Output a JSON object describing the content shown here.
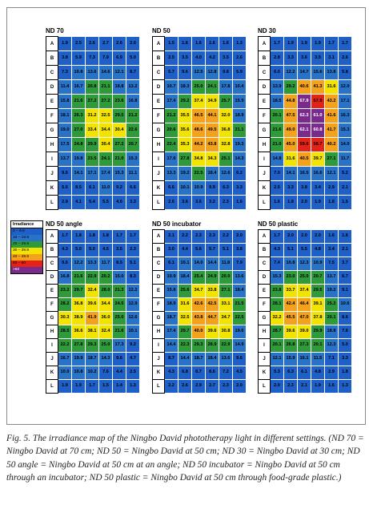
{
  "legend": {
    "title": "Irradiance",
    "items": [
      {
        "label": "0 – 9.9",
        "color": "#1f5fc8"
      },
      {
        "label": "10 – 19.9",
        "color": "#2872c8"
      },
      {
        "label": "20 – 29.9",
        "color": "#2f9a3a"
      },
      {
        "label": "30 – 39.9",
        "color": "#f2e300"
      },
      {
        "label": "40 – 49.9",
        "color": "#f4a11c"
      },
      {
        "label": "50 – 60",
        "color": "#e42318"
      },
      {
        "label": ">60",
        "color": "#7a2a8c"
      }
    ]
  },
  "caption": "Fig. 5. The irradiance map of the Ningbo David phototherapy light in different settings. (ND 70 = Ningbo David at 70 cm; ND 50 = Ningbo David at 50 cm; ND 30 = Ningbo David at 30 cm; ND 50 angle = Ningbo David at 50 cm at an angle; ND 50 incubator = Ningbo David at 50 cm through an incubator; ND 50 plastic = Ningbo David at 50 cm through food-grade plastic.)",
  "chart_data": [
    {
      "type": "heatmap",
      "title": "ND 70",
      "rows": [
        "A",
        "B",
        "C",
        "D",
        "E",
        "F",
        "G",
        "H",
        "I",
        "J",
        "K",
        "L"
      ],
      "values": [
        [
          1.9,
          2.5,
          2.6,
          2.7,
          2.6,
          2.0
        ],
        [
          3.8,
          5.9,
          7.3,
          7.9,
          6.9,
          5.0
        ],
        [
          7.3,
          10.8,
          13.6,
          14.6,
          12.1,
          8.7
        ],
        [
          11.4,
          16.7,
          20.8,
          21.1,
          18.8,
          13.2
        ],
        [
          15.8,
          21.6,
          27.2,
          27.2,
          23.6,
          16.8
        ],
        [
          18.1,
          26.3,
          31.2,
          32.5,
          29.5,
          21.2
        ],
        [
          19.0,
          27.0,
          33.4,
          34.4,
          30.4,
          22.6
        ],
        [
          17.5,
          24.8,
          29.9,
          30.4,
          27.2,
          20.7
        ],
        [
          13.7,
          19.8,
          23.5,
          24.1,
          21.0,
          15.3
        ],
        [
          9.6,
          14.1,
          17.1,
          17.4,
          15.3,
          11.1
        ],
        [
          5.6,
          8.5,
          6.1,
          11.0,
          9.2,
          6.6
        ],
        [
          2.9,
          4.1,
          5.4,
          5.5,
          4.6,
          3.3
        ]
      ]
    },
    {
      "type": "heatmap",
      "title": "ND 50",
      "rows": [
        "A",
        "B",
        "C",
        "D",
        "E",
        "F",
        "G",
        "H",
        "I",
        "J",
        "K",
        "L"
      ],
      "values": [
        [
          1.5,
          1.6,
          1.6,
          1.6,
          1.6,
          1.3
        ],
        [
          2.5,
          3.5,
          4.0,
          4.2,
          3.5,
          2.6
        ],
        [
          5.7,
          9.6,
          12.5,
          12.8,
          9.8,
          5.9
        ],
        [
          10.7,
          18.3,
          25.0,
          24.1,
          17.8,
          10.4
        ],
        [
          17.4,
          29.2,
          37.4,
          34.9,
          25.7,
          15.9
        ],
        [
          21.2,
          35.5,
          46.5,
          44.1,
          32.0,
          18.9
        ],
        [
          20.6,
          35.6,
          48.6,
          49.5,
          36.8,
          21.1
        ],
        [
          22.4,
          35.3,
          44.2,
          43.8,
          32.8,
          19.3
        ],
        [
          17.6,
          27.8,
          34.8,
          34.3,
          25.1,
          14.3
        ],
        [
          13.3,
          19.2,
          22.5,
          18.4,
          12.6,
          6.2
        ],
        [
          6.6,
          10.1,
          10.9,
          9.9,
          6.3,
          3.3
        ],
        [
          2.6,
          3.6,
          3.6,
          3.2,
          2.3,
          1.6
        ]
      ]
    },
    {
      "type": "heatmap",
      "title": "ND 30",
      "rows": [
        "A",
        "B",
        "C",
        "D",
        "E",
        "F",
        "G",
        "H",
        "I",
        "J",
        "K",
        "L"
      ],
      "values": [
        [
          1.7,
          1.9,
          1.9,
          1.9,
          1.7,
          1.7
        ],
        [
          2.8,
          3.3,
          3.6,
          3.5,
          3.1,
          2.6
        ],
        [
          6.0,
          12.2,
          14.7,
          15.6,
          13.8,
          5.8
        ],
        [
          13.9,
          29.2,
          40.6,
          41.3,
          31.6,
          12.0
        ],
        [
          18.5,
          44.8,
          67.9,
          57.9,
          43.2,
          17.1
        ],
        [
          20.1,
          47.5,
          62.3,
          61.0,
          41.6,
          16.3
        ],
        [
          21.6,
          49.0,
          62.1,
          60.8,
          41.7,
          15.3
        ],
        [
          21.0,
          45.0,
          59.6,
          58.7,
          40.2,
          14.0
        ],
        [
          14.8,
          31.6,
          40.5,
          39.7,
          27.1,
          11.7
        ],
        [
          7.0,
          14.1,
          16.5,
          16.6,
          12.1,
          5.2
        ],
        [
          2.5,
          3.3,
          3.8,
          3.4,
          2.9,
          2.1
        ],
        [
          1.6,
          1.8,
          2.0,
          1.9,
          1.8,
          1.5
        ]
      ]
    },
    {
      "type": "heatmap",
      "title": "ND 50 angle",
      "rows": [
        "A",
        "B",
        "C",
        "D",
        "E",
        "F",
        "G",
        "H",
        "I",
        "J",
        "K",
        "L"
      ],
      "values": [
        [
          1.7,
          1.8,
          1.8,
          1.8,
          1.7,
          1.7
        ],
        [
          4.3,
          5.0,
          5.0,
          4.5,
          3.5,
          2.3
        ],
        [
          9.6,
          12.2,
          13.3,
          11.7,
          8.5,
          5.1
        ],
        [
          16.8,
          21.6,
          22.9,
          20.2,
          15.0,
          8.3
        ],
        [
          23.2,
          29.7,
          32.4,
          28.0,
          21.3,
          12.2
        ],
        [
          28.2,
          36.8,
          39.6,
          34.4,
          24.5,
          12.9
        ],
        [
          30.3,
          38.9,
          41.9,
          36.0,
          25.0,
          12.6
        ],
        [
          28.5,
          36.6,
          38.1,
          32.4,
          21.6,
          10.1
        ],
        [
          22.2,
          27.8,
          29.3,
          25.0,
          17.3,
          9.2
        ],
        [
          16.7,
          19.9,
          18.7,
          14.3,
          9.6,
          4.7
        ],
        [
          10.0,
          10.8,
          10.2,
          7.6,
          4.4,
          2.5
        ],
        [
          1.9,
          1.9,
          1.7,
          1.5,
          1.4,
          1.3
        ]
      ]
    },
    {
      "type": "heatmap",
      "title": "ND 50 incubator",
      "rows": [
        "A",
        "B",
        "C",
        "D",
        "E",
        "F",
        "G",
        "H",
        "I",
        "J",
        "K",
        "L"
      ],
      "values": [
        [
          2.1,
          2.2,
          2.3,
          2.3,
          2.2,
          2.0
        ],
        [
          3.0,
          4.4,
          5.6,
          5.7,
          5.1,
          3.8
        ],
        [
          6.1,
          10.1,
          14.0,
          14.4,
          11.8,
          7.9
        ],
        [
          10.9,
          18.4,
          25.4,
          24.9,
          20.0,
          13.6
        ],
        [
          15.8,
          25.6,
          34.7,
          33.8,
          27.1,
          18.4
        ],
        [
          18.9,
          31.6,
          42.6,
          42.5,
          33.1,
          21.5
        ],
        [
          18.7,
          32.5,
          43.8,
          44.7,
          34.7,
          22.5
        ],
        [
          17.4,
          29.7,
          40.0,
          39.6,
          30.8,
          19.6
        ],
        [
          14.4,
          22.3,
          29.3,
          28.9,
          22.9,
          14.9
        ],
        [
          8.7,
          14.4,
          18.7,
          18.4,
          13.6,
          9.6
        ],
        [
          4.3,
          6.8,
          8.7,
          8.6,
          7.2,
          4.5
        ],
        [
          2.2,
          2.6,
          2.9,
          2.7,
          2.3,
          2.0
        ]
      ]
    },
    {
      "type": "heatmap",
      "title": "ND 50 plastic",
      "rows": [
        "A",
        "B",
        "C",
        "D",
        "E",
        "F",
        "G",
        "H",
        "I",
        "J",
        "K",
        "L"
      ],
      "values": [
        [
          1.7,
          2.0,
          2.0,
          2.0,
          1.6,
          1.6
        ],
        [
          4.3,
          5.1,
          5.5,
          4.8,
          3.4,
          2.1
        ],
        [
          7.4,
          10.8,
          12.3,
          10.9,
          7.5,
          3.7
        ],
        [
          15.3,
          23.0,
          25.0,
          20.7,
          13.7,
          6.7
        ],
        [
          23.8,
          33.7,
          37.4,
          29.5,
          19.2,
          9.1
        ],
        [
          28.1,
          42.4,
          46.4,
          39.1,
          25.2,
          10.6
        ],
        [
          32.2,
          45.5,
          47.0,
          37.8,
          20.1,
          8.6
        ],
        [
          28.7,
          39.6,
          39.0,
          29.9,
          18.8,
          7.6
        ],
        [
          20.1,
          26.8,
          27.3,
          20.1,
          12.3,
          5.0
        ],
        [
          12.1,
          15.9,
          16.1,
          11.5,
          7.1,
          3.3
        ],
        [
          5.3,
          6.3,
          6.1,
          4.8,
          2.9,
          1.8
        ],
        [
          2.0,
          2.3,
          2.1,
          1.9,
          1.6,
          1.3
        ]
      ]
    }
  ]
}
